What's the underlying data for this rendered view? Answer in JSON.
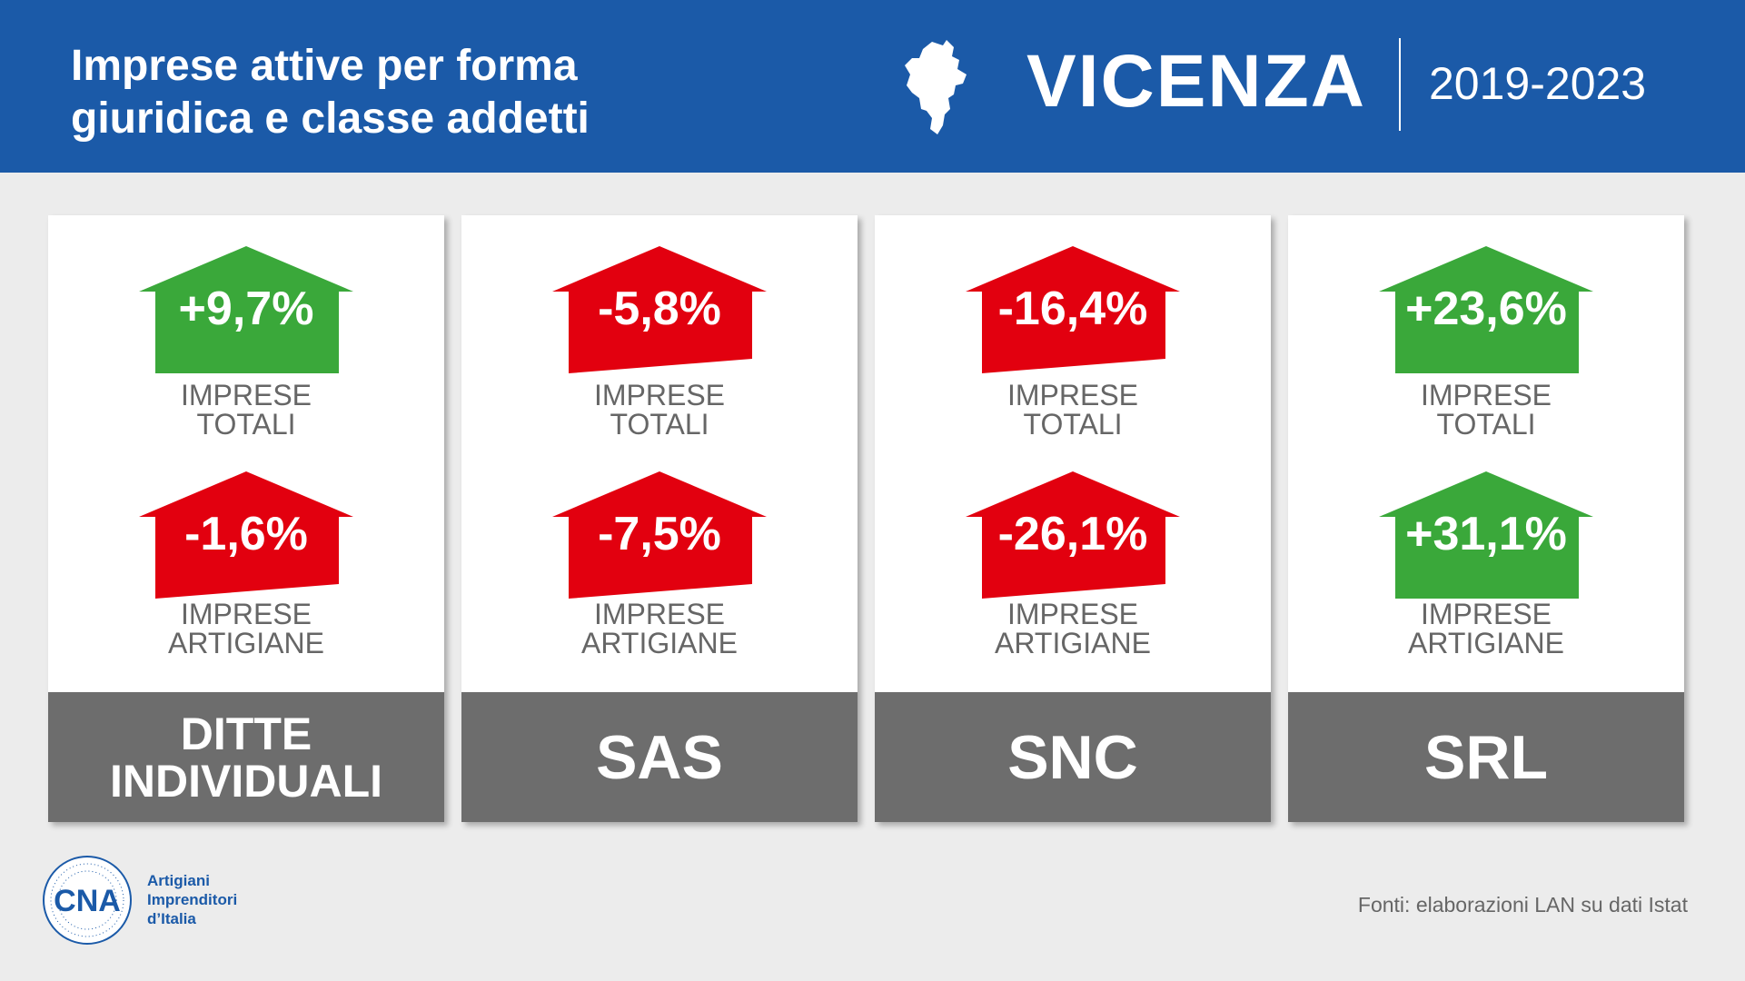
{
  "header": {
    "title_line1": "Imprese attive per forma",
    "title_line2": "giuridica e classe addetti",
    "city": "VICENZA",
    "period": "2019-2023",
    "background_color": "#1b5aa8",
    "icon": "vicenza-map-icon"
  },
  "chart_data": {
    "type": "table",
    "title": "Imprese attive per forma giuridica e classe addetti",
    "row_labels": [
      "IMPRESE TOTALI",
      "IMPRESE ARTIGIANE"
    ],
    "units": "%",
    "categories": [
      {
        "name": "DITTE INDIVIDUALI",
        "name_line1": "DITTE",
        "name_line2": "INDIVIDUALI",
        "totali": 9.7,
        "artigiane": -1.6,
        "totali_label": "+9,7%",
        "artigiane_label": "-1,6%"
      },
      {
        "name": "SAS",
        "name_line1": "SAS",
        "name_line2": "",
        "totali": -5.8,
        "artigiane": -7.5,
        "totali_label": "-5,8%",
        "artigiane_label": "-7,5%"
      },
      {
        "name": "SNC",
        "name_line1": "SNC",
        "name_line2": "",
        "totali": -16.4,
        "artigiane": -26.1,
        "totali_label": "-16,4%",
        "artigiane_label": "-26,1%"
      },
      {
        "name": "SRL",
        "name_line1": "SRL",
        "name_line2": "",
        "totali": 23.6,
        "artigiane": 31.1,
        "totali_label": "+23,6%",
        "artigiane_label": "+31,1%"
      }
    ],
    "colors": {
      "positive": "#3aa83a",
      "negative": "#e2000f"
    }
  },
  "labels": {
    "metric_line1": "IMPRESE",
    "totali_line2": "TOTALI",
    "artigiane_line2": "ARTIGIANE"
  },
  "footer": {
    "logo_text": "CNA",
    "logo_line1": "Artigiani",
    "logo_line2": "Imprenditori",
    "logo_line3": "d’Italia",
    "source": "Fonti: elaborazioni LAN su dati Istat"
  }
}
